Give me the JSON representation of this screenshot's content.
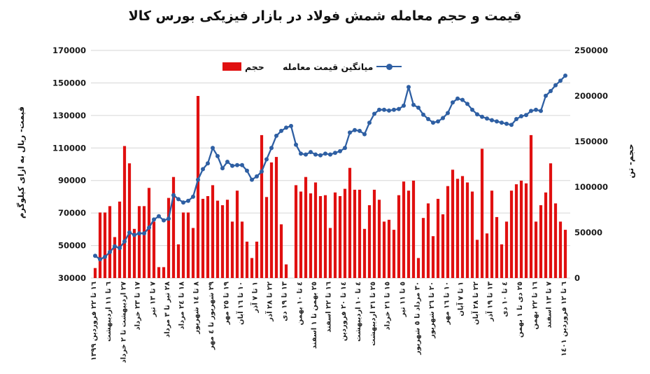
{
  "title": "قیمت و حجم معامله شمش فولاد در بازار فیزیکی بورس کالا",
  "legend": {
    "volume": "حجم",
    "price": "میانگین قیمت معامله"
  },
  "axes": {
    "left_title": "قیمت- ریال به ازای کیلوگرم",
    "right_title": "حجم- تن"
  },
  "colors": {
    "bar_red": "#e01010",
    "line_blue": "#2e5fa3",
    "grid_gray": "#d6d6d6",
    "text_dark": "#1a1a1a"
  },
  "chart_data": {
    "type": "bar",
    "subtype": "combo-bar-line",
    "title": "قیمت و حجم معامله شمش فولاد در بازار فیزیکی بورس کالا",
    "xlabel": "",
    "ylabel_left": "قیمت- ریال به ازای کیلوگرم",
    "ylabel_right": "حجم- تن",
    "grid": true,
    "legend_position": "top-inside",
    "left_axis": {
      "min": 30000,
      "max": 170000,
      "step": 20000,
      "ticks": [
        170000,
        150000,
        130000,
        110000,
        90000,
        70000,
        50000,
        30000
      ]
    },
    "right_axis": {
      "min": 0,
      "max": 250000,
      "step": 50000,
      "ticks": [
        250000,
        200000,
        150000,
        100000,
        50000,
        0
      ]
    },
    "label_every_n_bars": 3,
    "categories": [
      "١٦ تا ٢٢ فروردین ١٣٩٩",
      "٦ تا ١١ اردیبهشت",
      "٢٧ اردیبهشت تا ٢ خرداد",
      "١٧ تا ٢٣ خرداد",
      "٧ تا ١٣ تیر",
      "٢٨ تیر تا ٣ مرداد",
      "١٨ تا ٢٤ مرداد",
      "٨ تا ١٤ شهریور",
      "٢٩ شهریور تا ٤ مهر",
      "١٩ تا ٢٥ مهر",
      "١٠ تا ١٦ آبان",
      "١ تا ٧ آذر",
      "٢٢ تا ٢٨ آذر",
      "١٣ تا ١٩ دی",
      "٤ تا ١٠ بهمن",
      "٢٥ بهمن تا ١ اسفند",
      "١٦ تا ٢٢ اسفند",
      "١٤ تا ٢٠ فروردین",
      "٤ تا ١٠ اردیبهشت",
      "٢٥ تا ٣١ اردیبهشت",
      "١٥ تا ٢١ خرداد",
      "٥ تا ١١ تیر",
      "٣٠ مرداد تا ٥ شهریور",
      "٢٠ تا ٢٦ شهریور",
      "١٠ تا ١٦ مهر",
      "١ تا ٧ آبان",
      "٢٢ تا ٢٨ آبان",
      "١٣ تا ١٩ آذر",
      "٤ تا ١٠ دی",
      "٢٥ دی تا ١ بهمن",
      "١٦ تا ٢٢ بهمن",
      "٧ تا ١٣ اسفند",
      "٦ تا ١٢ فروردین ١٤٠١"
    ],
    "series": [
      {
        "name": "حجم",
        "type": "bar",
        "axis": "right",
        "unit": "تن",
        "color": "#e01010",
        "values": [
          11000,
          72000,
          72000,
          79000,
          45000,
          84000,
          145000,
          126000,
          54000,
          79000,
          79000,
          99000,
          62000,
          12000,
          12000,
          88000,
          111000,
          37000,
          72000,
          72000,
          55000,
          200000,
          87000,
          90000,
          102000,
          85000,
          80000,
          86000,
          62000,
          96000,
          62000,
          40000,
          22000,
          40000,
          157000,
          89000,
          127000,
          133000,
          59000,
          15000,
          0,
          102000,
          95000,
          111000,
          93000,
          105000,
          90000,
          91000,
          55000,
          94000,
          90000,
          98000,
          121000,
          97000,
          97000,
          54000,
          80000,
          97000,
          86000,
          62000,
          64000,
          53000,
          91000,
          106000,
          96000,
          107000,
          22000,
          66000,
          82000,
          46000,
          87000,
          70000,
          101000,
          119000,
          109000,
          112000,
          105000,
          95000,
          42000,
          142000,
          49000,
          96000,
          67000,
          37000,
          62000,
          96000,
          103000,
          107000,
          104000,
          157000,
          62000,
          80000,
          94000,
          126000,
          82000,
          62000,
          53000
        ]
      },
      {
        "name": "میانگین قیمت معامله",
        "type": "line",
        "axis": "left",
        "unit": "ریال به ازای کیلوگرم",
        "color": "#2e5fa3",
        "values": [
          43700,
          41500,
          43000,
          46000,
          49500,
          48500,
          52500,
          58000,
          56500,
          57500,
          57500,
          61000,
          66000,
          68000,
          65500,
          66500,
          81000,
          78500,
          76500,
          77500,
          80000,
          90500,
          97000,
          100500,
          110000,
          105000,
          97500,
          101500,
          99000,
          99500,
          99500,
          96000,
          90500,
          92500,
          95500,
          103000,
          110000,
          117500,
          120500,
          122500,
          123500,
          112000,
          106500,
          106000,
          107500,
          106000,
          105500,
          106500,
          106000,
          107000,
          108000,
          110000,
          119500,
          121000,
          120500,
          118500,
          125500,
          131000,
          133500,
          133500,
          133000,
          133500,
          134000,
          136000,
          147500,
          136500,
          134800,
          130500,
          127800,
          125600,
          126300,
          128400,
          131500,
          138000,
          140400,
          139600,
          137100,
          133500,
          130700,
          129200,
          128100,
          127100,
          126300,
          125600,
          124900,
          124200,
          127800,
          129500,
          130300,
          132800,
          133500,
          132800,
          142100,
          145000,
          148600,
          151400,
          154500
        ]
      }
    ]
  }
}
